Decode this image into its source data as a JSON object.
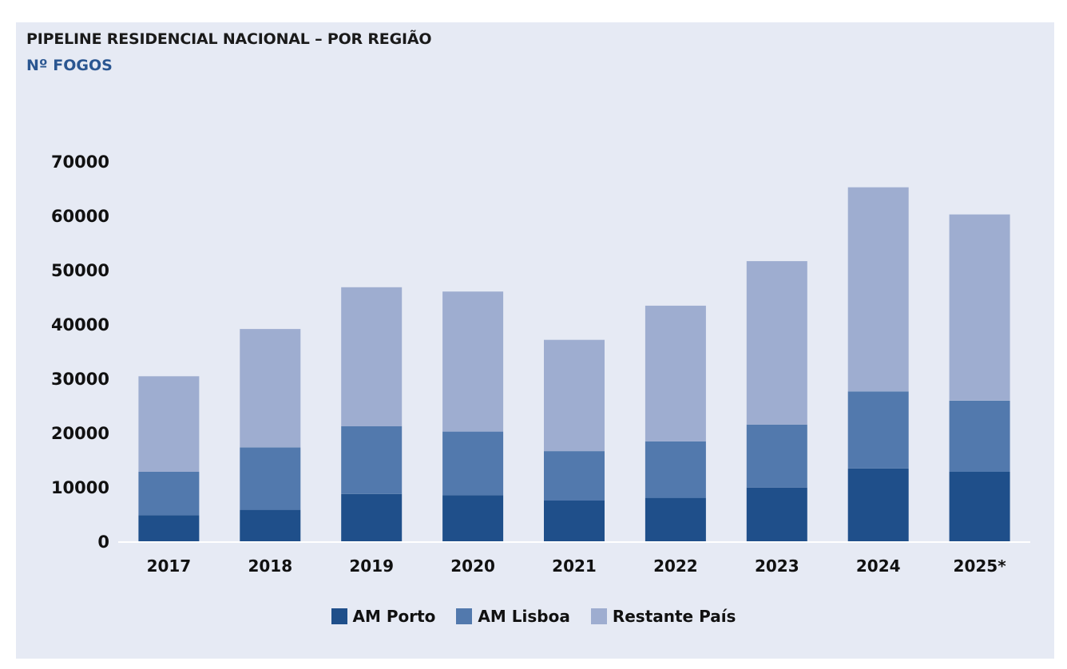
{
  "chart_data": {
    "type": "bar",
    "stacked": true,
    "title": "PIPELINE RESIDENCIAL NACIONAL – POR REGIÃO",
    "subtitle": "Nº FOGOS",
    "categories": [
      "2017",
      "2018",
      "2019",
      "2020",
      "2021",
      "2022",
      "2023",
      "2024",
      "2025*"
    ],
    "series": [
      {
        "name": "AM Porto",
        "color": "#1f4f8a",
        "values": [
          4800,
          5800,
          8700,
          8500,
          7500,
          8000,
          9900,
          13400,
          12800
        ]
      },
      {
        "name": "AM Lisboa",
        "color": "#5279ad",
        "values": [
          8000,
          11500,
          12500,
          11700,
          9100,
          10400,
          11600,
          14200,
          13100
        ]
      },
      {
        "name": "Restante País",
        "color": "#9eadd0",
        "values": [
          17600,
          21800,
          25600,
          25800,
          20500,
          25000,
          30100,
          37600,
          34300
        ]
      }
    ],
    "yticks": [
      "0",
      "10000",
      "20000",
      "30000",
      "40000",
      "50000",
      "60000",
      "70000"
    ],
    "ylim": [
      0,
      70000
    ],
    "xlabel": "",
    "ylabel": "",
    "legend_position": "bottom-center",
    "grid": false
  }
}
